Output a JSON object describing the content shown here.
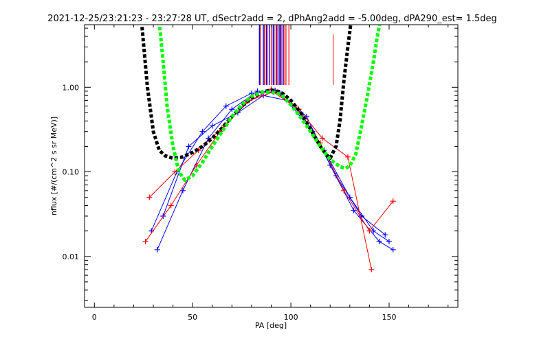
{
  "chart_data": {
    "type": "line",
    "title": "2021-12-25/23:21:23 - 23:27:28 UT, dSectr2add = 2, dPhAng2add = -5.00deg, dPA290_est=    1.5deg",
    "xlabel": "PA [deg]",
    "ylabel": "nflux [#/(cm^2 s sr MeV)]",
    "xlim": [
      -5,
      185
    ],
    "ylim": [
      0.0025,
      5.5
    ],
    "yscale": "log",
    "x_ticks": [
      0,
      50,
      100,
      150
    ],
    "x_tick_labels": [
      "0",
      "50",
      "100",
      "150"
    ],
    "y_ticks": [
      0.01,
      0.1,
      1.0
    ],
    "y_tick_labels": [
      "0.01",
      "0.10",
      "1.00"
    ],
    "grid": false,
    "legend": "none",
    "colors": {
      "blue": "#0000ff",
      "red": "#ff0000",
      "black": "#000000",
      "green": "#00ff00"
    },
    "series": [
      {
        "color": "black",
        "style": "thick-dashed",
        "kind": "fit",
        "x": [
          24,
          27,
          30,
          33,
          36,
          40,
          45,
          50,
          55,
          60,
          65,
          70,
          75,
          80,
          85,
          90,
          95,
          100,
          105,
          110,
          115,
          118,
          120,
          123,
          125,
          127,
          129,
          131
        ],
        "y": [
          6.0,
          1.0,
          0.3,
          0.18,
          0.155,
          0.145,
          0.15,
          0.17,
          0.2,
          0.25,
          0.33,
          0.45,
          0.6,
          0.75,
          0.87,
          0.93,
          0.88,
          0.7,
          0.5,
          0.32,
          0.2,
          0.16,
          0.145,
          0.2,
          0.4,
          1.2,
          3.0,
          7.0
        ]
      },
      {
        "color": "green",
        "style": "thick-dashed",
        "kind": "fit",
        "x": [
          33,
          35,
          37,
          40,
          43,
          46,
          50,
          55,
          60,
          65,
          70,
          75,
          80,
          85,
          90,
          95,
          100,
          105,
          110,
          115,
          120,
          125,
          128,
          130,
          133,
          136,
          139,
          142,
          144,
          146
        ],
        "y": [
          6.0,
          2.0,
          0.6,
          0.2,
          0.1,
          0.08,
          0.09,
          0.13,
          0.2,
          0.3,
          0.45,
          0.62,
          0.78,
          0.87,
          0.88,
          0.83,
          0.62,
          0.44,
          0.3,
          0.2,
          0.14,
          0.115,
          0.11,
          0.118,
          0.16,
          0.35,
          0.8,
          2.0,
          4.0,
          7.0
        ]
      },
      {
        "color": "blue",
        "kind": "measured",
        "x": [
          32,
          45,
          58,
          70,
          83,
          95,
          108,
          120,
          132,
          145,
          152
        ],
        "y": [
          0.012,
          0.06,
          0.25,
          0.55,
          0.9,
          0.85,
          0.45,
          0.12,
          0.035,
          0.015,
          0.012
        ]
      },
      {
        "color": "blue",
        "kind": "measured",
        "x": [
          29,
          42,
          55,
          67,
          80,
          92,
          105,
          117,
          130,
          142,
          150
        ],
        "y": [
          0.02,
          0.1,
          0.3,
          0.6,
          0.85,
          0.92,
          0.5,
          0.18,
          0.05,
          0.02,
          0.015
        ]
      },
      {
        "color": "blue",
        "kind": "measured",
        "x": [
          35,
          48,
          60,
          73,
          86,
          98,
          111,
          123,
          136,
          148
        ],
        "y": [
          0.03,
          0.2,
          0.35,
          0.5,
          0.8,
          0.7,
          0.3,
          0.09,
          0.03,
          0.018
        ]
      },
      {
        "color": "red",
        "kind": "measured",
        "x": [
          26,
          39,
          52,
          64,
          77,
          90,
          102,
          115,
          127,
          140,
          152
        ],
        "y": [
          0.015,
          0.04,
          0.12,
          0.3,
          0.65,
          0.95,
          0.6,
          0.22,
          0.06,
          0.02,
          0.045
        ]
      },
      {
        "color": "red",
        "kind": "measured",
        "x": [
          28,
          41,
          53,
          66,
          79,
          91,
          104,
          116,
          129,
          141
        ],
        "y": [
          0.05,
          0.1,
          0.18,
          0.35,
          0.7,
          0.88,
          0.55,
          0.25,
          0.15,
          0.007
        ]
      }
    ],
    "vertical_lines": {
      "blue_x": [
        84,
        86,
        87.5,
        89,
        91,
        92.5,
        94,
        95,
        96
      ],
      "red_x": [
        84.5,
        86.5,
        88,
        90,
        91.5,
        93,
        94.5,
        96.5,
        97.5,
        99
      ],
      "red_long_x": [
        121.5
      ]
    }
  }
}
